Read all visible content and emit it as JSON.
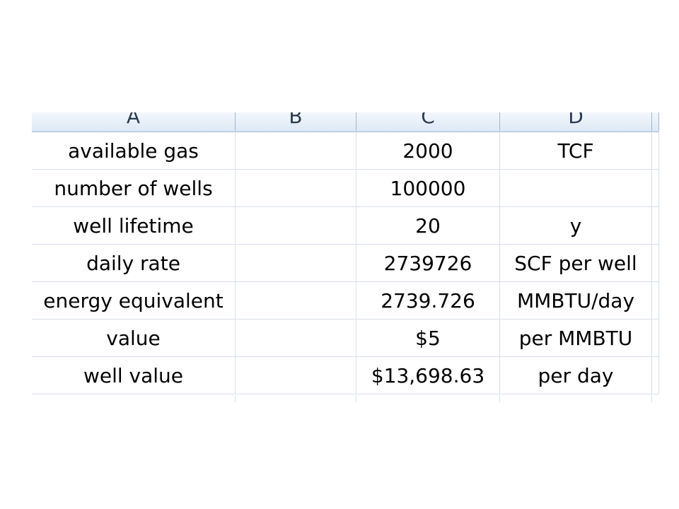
{
  "columns": [
    "A",
    "B",
    "C",
    "D"
  ],
  "rows": [
    {
      "a": "available gas",
      "b": "",
      "c": "2000",
      "d": "TCF"
    },
    {
      "a": "number of wells",
      "b": "",
      "c": "100000",
      "d": ""
    },
    {
      "a": "well lifetime",
      "b": "",
      "c": "20",
      "d": "y"
    },
    {
      "a": "daily rate",
      "b": "",
      "c": "2739726",
      "d": "SCF per well"
    },
    {
      "a": "energy equivalent",
      "b": "",
      "c": "2739.726",
      "d": "MMBTU/day"
    },
    {
      "a": "value",
      "b": "",
      "c": "$5",
      "d": "per MMBTU"
    },
    {
      "a": "well value",
      "b": "",
      "c": "$13,698.63",
      "d": "per day"
    }
  ]
}
